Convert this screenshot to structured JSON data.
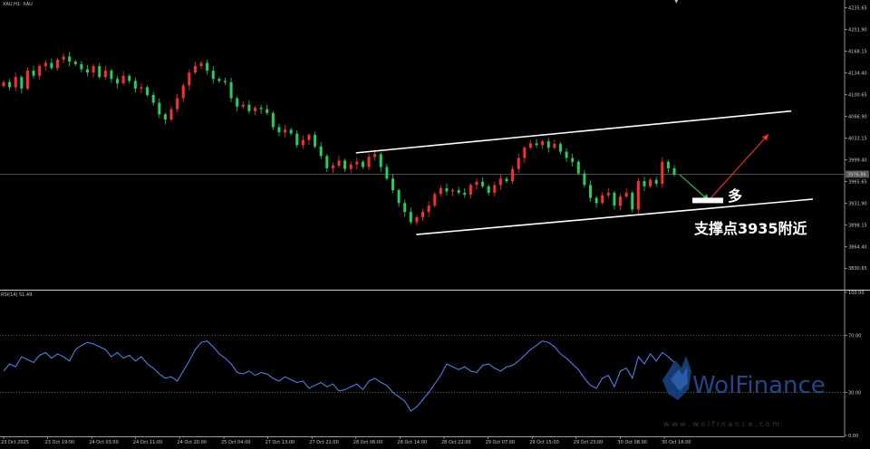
{
  "chart_data": [
    {
      "type": "candlestick",
      "title": "XAUUSD,H1: XAU",
      "symbol_caption": "XAU,H1: XAU",
      "price_axis_ticks": [
        "4235.65",
        "4201.90",
        "4168.15",
        "4134.40",
        "4100.65",
        "4066.90",
        "4033.15",
        "3999.40",
        "3965.65",
        "3931.90",
        "3898.15",
        "3864.40",
        "3830.65"
      ],
      "current_price_label": "3976.86",
      "ylim": [
        3800,
        4245
      ],
      "time_axis_ticks": [
        "23 Oct 2025",
        "23 Oct 19:00",
        "24 Oct 03:00",
        "24 Oct 11:00",
        "24 Oct 20:00",
        "25 Oct 04:00",
        "27 Oct 13:00",
        "27 Oct 21:00",
        "28 Oct 06:00",
        "28 Oct 14:00",
        "28 Oct 22:00",
        "29 Oct 07:00",
        "29 Oct 15:00",
        "29 Oct 23:00",
        "30 Oct 08:00",
        "30 Oct 16:00"
      ],
      "closes": [
        4120,
        4112,
        4128,
        4110,
        4138,
        4130,
        4145,
        4150,
        4142,
        4155,
        4160,
        4152,
        4148,
        4140,
        4135,
        4145,
        4128,
        4138,
        4125,
        4118,
        4130,
        4122,
        4110,
        4112,
        4100,
        4088,
        4070,
        4062,
        4078,
        4095,
        4115,
        4135,
        4145,
        4150,
        4138,
        4125,
        4122,
        4120,
        4095,
        4082,
        4085,
        4075,
        4080,
        4078,
        4072,
        4050,
        4042,
        4046,
        4040,
        4022,
        4030,
        4038,
        4020,
        4005,
        3986,
        3990,
        3998,
        3985,
        3992,
        3996,
        3988,
        4004,
        4008,
        3988,
        3970,
        3952,
        3932,
        3918,
        3902,
        3910,
        3918,
        3928,
        3946,
        3955,
        3950,
        3952,
        3948,
        3945,
        3960,
        3965,
        3958,
        3948,
        3960,
        3970,
        3966,
        3985,
        4002,
        4018,
        4025,
        4022,
        4028,
        4018,
        4024,
        4012,
        4002,
        3996,
        3978,
        3960,
        3940,
        3932,
        3944,
        3948,
        3928,
        3942,
        3948,
        3922,
        3966,
        3958,
        3968,
        3962,
        3996,
        3986,
        3976
      ],
      "channel_upper": [
        [
          "28 Oct 06:00",
          4010
        ],
        [
          "30 Oct 21:00",
          4075
        ]
      ],
      "channel_lower": [
        [
          "28 Oct 14:00",
          3883
        ],
        [
          "30 Oct 21:00",
          3938
        ]
      ],
      "arrow_down": [
        [
          3976,
          3936
        ],
        "green"
      ],
      "arrow_up": [
        [
          3936,
          4039
        ],
        "red"
      ],
      "support_marker": 3936,
      "annotations": [
        "多",
        "支撑点3935附近"
      ]
    },
    {
      "type": "line",
      "title": "RSI(14) 51.49",
      "ylim": [
        0,
        100
      ],
      "levels": [
        70,
        30
      ],
      "axis_ticks": [
        "100.00",
        "70.00",
        "30.00",
        "0.00"
      ],
      "values": [
        45,
        50,
        48,
        55,
        53,
        51,
        56,
        58,
        54,
        57,
        55,
        52,
        60,
        63,
        65,
        64,
        62,
        60,
        55,
        58,
        54,
        56,
        52,
        55,
        50,
        47,
        43,
        40,
        41,
        38,
        45,
        52,
        60,
        65,
        66,
        62,
        57,
        54,
        50,
        44,
        43,
        45,
        42,
        44,
        43,
        40,
        38,
        41,
        39,
        37,
        38,
        33,
        35,
        37,
        34,
        36,
        31,
        32,
        34,
        36,
        32,
        38,
        40,
        37,
        35,
        30,
        27,
        24,
        17,
        20,
        25,
        30,
        36,
        42,
        50,
        48,
        46,
        48,
        45,
        44,
        49,
        50,
        47,
        45,
        48,
        49,
        52,
        56,
        60,
        63,
        66,
        65,
        62,
        57,
        54,
        50,
        46,
        40,
        35,
        33,
        40,
        42,
        34,
        45,
        47,
        40,
        55,
        50,
        57,
        52,
        58,
        55,
        51
      ]
    }
  ],
  "watermark": {
    "brand": "WolFinance",
    "url": "w w w . w o l f i n a n c e . c o m"
  },
  "colors": {
    "bull": "#ff2d2d",
    "bear": "#22d05a",
    "rsi_line": "#4a8cff",
    "background": "#000000",
    "grid_dots": "#9a9a9a"
  }
}
